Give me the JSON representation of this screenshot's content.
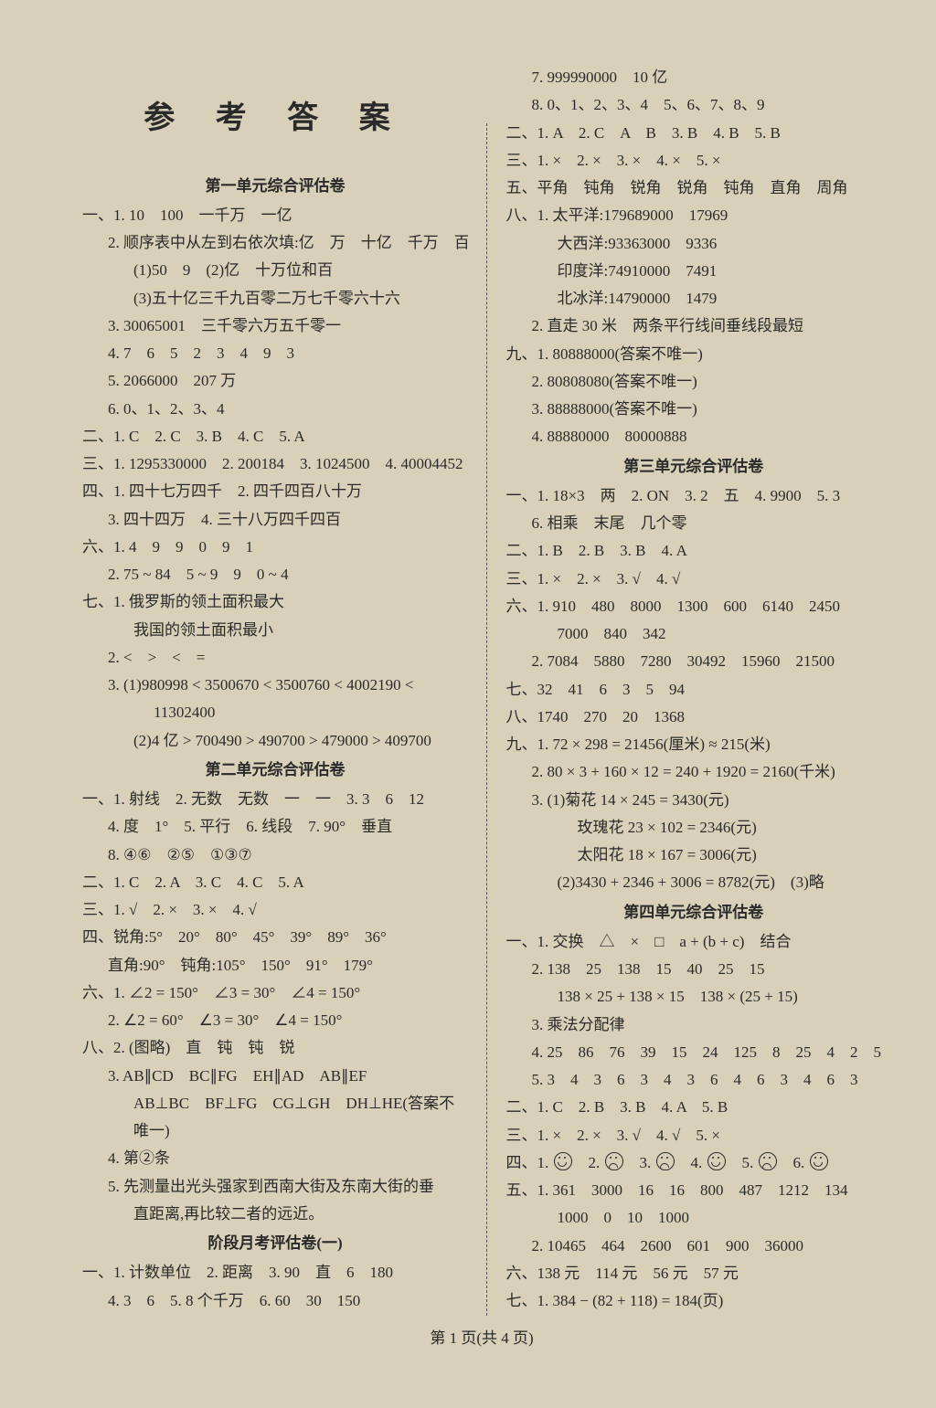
{
  "title": "参 考 答 案",
  "footer": "第 1 页(共 4 页)",
  "left": {
    "sec1_title": "第一单元综合评估卷",
    "l": [
      "一、1. 10　100　一千万　一亿",
      "2. 顺序表中从左到右依次填:亿　万　十亿　千万　百",
      "(1)50　9　(2)亿　十万位和百",
      "(3)五十亿三千九百零二万七千零六十六",
      "3. 30065001　三千零六万五千零一",
      "4. 7　6　5　2　3　4　9　3",
      "5. 2066000　207 万",
      "6. 0、1、2、3、4",
      "二、1. C　2. C　3. B　4. C　5. A",
      "三、1. 1295330000　2. 200184　3. 1024500　4. 40004452",
      "四、1. 四十七万四千　2. 四千四百八十万",
      "3. 四十四万　4. 三十八万四千四百",
      "六、1. 4　9　9　0　9　1",
      "2. 75 ~ 84　5 ~ 9　9　0 ~ 4",
      "七、1. 俄罗斯的领土面积最大",
      "我国的领土面积最小",
      "2. <　>　<　=",
      "3. (1)980998 < 3500670 < 3500760 < 4002190 <",
      "11302400",
      "(2)4 亿 > 700490 > 490700 > 479000 > 409700"
    ],
    "sec2_title": "第二单元综合评估卷",
    "m": [
      "一、1. 射线　2. 无数　无数　一　一　3. 3　6　12",
      "4. 度　1°　5. 平行　6. 线段　7. 90°　垂直",
      "8. ④⑥　②⑤　①③⑦",
      "二、1. C　2. A　3. C　4. C　5. A",
      "三、1. √　2. ×　3. ×　4. √",
      "四、锐角:5°　20°　80°　45°　39°　89°　36°",
      "直角:90°　钝角:105°　150°　91°　179°",
      "六、1. ∠2 = 150°　∠3 = 30°　∠4 = 150°",
      "2. ∠2 = 60°　∠3 = 30°　∠4 = 150°",
      "八、2. (图略)　直　钝　钝　锐",
      "3. AB∥CD　BC∥FG　EH∥AD　AB∥EF",
      "AB⊥BC　BF⊥FG　CG⊥GH　DH⊥HE(答案不",
      "唯一)",
      "4. 第②条",
      "5. 先测量出光头强家到西南大街及东南大街的垂",
      "直距离,再比较二者的远近。"
    ],
    "sec3_title": "阶段月考评估卷(一)",
    "n": [
      "一、1. 计数单位　2. 距离　3. 90　直　6　180",
      "4. 3　6　5. 8 个千万　6. 60　30　150"
    ]
  },
  "right": {
    "a": [
      "7. 999990000　10 亿",
      "8. 0、1、2、3、4　5、6、7、8、9",
      "二、1. A　2. C　A　B　3. B　4. B　5. B",
      "三、1. ×　2. ×　3. ×　4. ×　5. ×",
      "五、平角　钝角　锐角　锐角　钝角　直角　周角",
      "八、1. 太平洋:179689000　17969",
      "大西洋:93363000　9336",
      "印度洋:74910000　7491",
      "北冰洋:14790000　1479",
      "2. 直走 30 米　两条平行线间垂线段最短",
      "九、1. 80888000(答案不唯一)",
      "2. 80808080(答案不唯一)",
      "3. 88888000(答案不唯一)",
      "4. 88880000　80000888"
    ],
    "sec3_title": "第三单元综合评估卷",
    "b": [
      "一、1. 18×3　两　2. ON　3. 2　五　4. 9900　5. 3",
      "6. 相乘　末尾　几个零",
      "二、1. B　2. B　3. B　4. A",
      "三、1. ×　2. ×　3. √　4. √",
      "六、1. 910　480　8000　1300　600　6140　2450",
      "7000　840　342",
      "2. 7084　5880　7280　30492　15960　21500",
      "七、32　41　6　3　5　94",
      "八、1740　270　20　1368",
      "九、1. 72 × 298 = 21456(厘米) ≈ 215(米)",
      "2. 80 × 3 + 160 × 12 = 240 + 1920 = 2160(千米)",
      "3. (1)菊花 14 × 245 = 3430(元)",
      "玫瑰花 23 × 102 = 2346(元)",
      "太阳花 18 × 167 = 3006(元)",
      "(2)3430 + 2346 + 3006 = 8782(元)　(3)略"
    ],
    "sec4_title": "第四单元综合评估卷",
    "c": [
      "一、1. 交换　△　×　□　a + (b + c)　结合",
      "2. 138　25　138　15　40　25　15",
      "138 × 25 + 138 × 15　138 × (25 + 15)",
      "3. 乘法分配律",
      "4. 25　86　76　39　15　24　125　8　25　4　2　5",
      "5. 3　4　3　6　3　4　3　6　4　6　3　4　6　3",
      "二、1. C　2. B　3. B　4. A　5. B",
      "三、1. ×　2. ×　3. √　4. √　5. ×"
    ],
    "faces_label": "四、1.",
    "faces": [
      "smile",
      "sad",
      "sad",
      "smile",
      "sad",
      "smile"
    ],
    "d": [
      "五、1. 361　3000　16　16　800　487　1212　134",
      "1000　0　10　1000",
      "2. 10465　464　2600　601　900　36000",
      "六、138 元　114 元　56 元　57 元",
      "七、1. 384 − (82 + 118) = 184(页)"
    ]
  }
}
